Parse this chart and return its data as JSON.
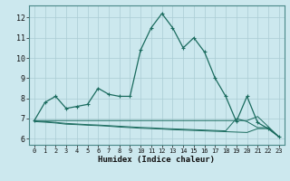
{
  "xlabel": "Humidex (Indice chaleur)",
  "xlim": [
    -0.5,
    23.5
  ],
  "ylim": [
    5.7,
    12.6
  ],
  "yticks": [
    6,
    7,
    8,
    9,
    10,
    11,
    12
  ],
  "xticks": [
    0,
    1,
    2,
    3,
    4,
    5,
    6,
    7,
    8,
    9,
    10,
    11,
    12,
    13,
    14,
    15,
    16,
    17,
    18,
    19,
    20,
    21,
    22,
    23
  ],
  "background_color": "#cce8ee",
  "grid_color": "#aaccd4",
  "line_color": "#1a6b5e",
  "line1_x": [
    0,
    1,
    2,
    3,
    4,
    5,
    6,
    7,
    8,
    9,
    10,
    11,
    12,
    13,
    14,
    15,
    16,
    17,
    18,
    19,
    20,
    21,
    22,
    23
  ],
  "line1_y": [
    6.9,
    7.8,
    8.1,
    7.5,
    7.6,
    7.7,
    8.5,
    8.2,
    8.1,
    8.1,
    10.4,
    11.5,
    12.2,
    11.5,
    10.5,
    11.0,
    10.3,
    9.0,
    8.1,
    6.85,
    8.1,
    6.8,
    6.5,
    6.1
  ],
  "line2_x": [
    0,
    1,
    2,
    3,
    4,
    5,
    6,
    7,
    8,
    9,
    10,
    11,
    12,
    13,
    14,
    15,
    16,
    17,
    18,
    19,
    20,
    21,
    22,
    23
  ],
  "line2_y": [
    6.85,
    6.82,
    6.78,
    6.72,
    6.7,
    6.67,
    6.65,
    6.62,
    6.58,
    6.55,
    6.52,
    6.5,
    6.48,
    6.45,
    6.43,
    6.41,
    6.39,
    6.37,
    6.35,
    6.33,
    6.31,
    6.5,
    6.5,
    6.1
  ],
  "line3_x": [
    0,
    1,
    2,
    3,
    4,
    5,
    6,
    7,
    8,
    9,
    10,
    11,
    12,
    13,
    14,
    15,
    16,
    17,
    18,
    19,
    20,
    21,
    22,
    23
  ],
  "line3_y": [
    6.88,
    6.85,
    6.81,
    6.76,
    6.73,
    6.7,
    6.68,
    6.65,
    6.62,
    6.59,
    6.56,
    6.54,
    6.51,
    6.49,
    6.47,
    6.45,
    6.43,
    6.41,
    6.39,
    7.0,
    6.85,
    6.55,
    6.55,
    6.1
  ],
  "line4_x": [
    0,
    1,
    2,
    3,
    4,
    5,
    6,
    7,
    8,
    9,
    10,
    11,
    12,
    13,
    14,
    15,
    16,
    17,
    18,
    19,
    20,
    21,
    22,
    23
  ],
  "line4_y": [
    6.9,
    6.9,
    6.9,
    6.9,
    6.9,
    6.9,
    6.9,
    6.9,
    6.9,
    6.9,
    6.9,
    6.9,
    6.9,
    6.9,
    6.9,
    6.9,
    6.9,
    6.9,
    6.9,
    6.9,
    6.9,
    7.1,
    6.6,
    6.1
  ]
}
